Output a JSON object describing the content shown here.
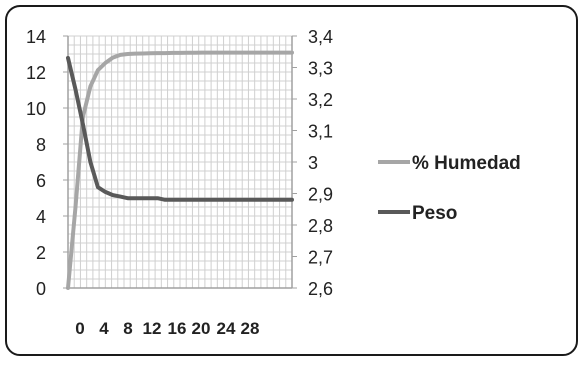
{
  "chart_data": {
    "type": "line",
    "x": [
      0,
      1,
      2,
      3,
      4,
      5,
      6,
      7,
      8,
      9,
      10,
      11,
      12,
      13,
      14,
      15,
      16,
      17,
      18,
      19,
      20,
      21,
      22,
      23,
      24,
      25,
      26,
      27,
      28,
      29,
      30
    ],
    "x_tick_labels": [
      "0",
      "4",
      "8",
      "12",
      "16",
      "20",
      "24",
      "28"
    ],
    "y_left_ticks": [
      "0",
      "2",
      "4",
      "6",
      "8",
      "10",
      "12",
      "14"
    ],
    "y_right_ticks": [
      "2,6",
      "2,7",
      "2,8",
      "2,9",
      "3",
      "3,1",
      "3,2",
      "3,3",
      "3,4"
    ],
    "ylim_left": [
      0,
      14
    ],
    "ylim_right": [
      2.6,
      3.4
    ],
    "grid": true,
    "legend_position": "right",
    "series": [
      {
        "name": "% Humedad",
        "axis": "left",
        "color": "#a6a6a6",
        "values": [
          0,
          4.5,
          9.5,
          11.2,
          12.1,
          12.5,
          12.8,
          12.95,
          13.0,
          13.02,
          13.03,
          13.04,
          13.05,
          13.05,
          13.06,
          13.06,
          13.07,
          13.07,
          13.08,
          13.08,
          13.08,
          13.08,
          13.08,
          13.08,
          13.08,
          13.08,
          13.08,
          13.08,
          13.08,
          13.08,
          13.08
        ]
      },
      {
        "name": "Peso",
        "axis": "right",
        "color": "#595959",
        "values": [
          3.33,
          3.23,
          3.12,
          3.0,
          2.92,
          2.905,
          2.895,
          2.89,
          2.885,
          2.885,
          2.885,
          2.885,
          2.885,
          2.88,
          2.88,
          2.88,
          2.88,
          2.88,
          2.88,
          2.88,
          2.88,
          2.88,
          2.88,
          2.88,
          2.88,
          2.88,
          2.88,
          2.88,
          2.88,
          2.88,
          2.88
        ]
      }
    ]
  }
}
